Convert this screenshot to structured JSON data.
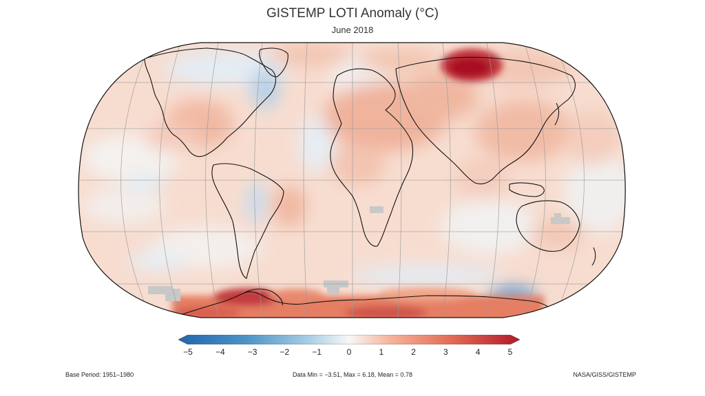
{
  "title": "GISTEMP LOTI Anomaly (°C)",
  "subtitle": "June 2018",
  "colorbar": {
    "ticks": [
      "−5",
      "−4",
      "−3",
      "−2",
      "−1",
      "0",
      "1",
      "2",
      "3",
      "4",
      "5"
    ],
    "min_color": "#2166ac",
    "zero_color": "#f7f7f7",
    "max_color": "#b2182b"
  },
  "footer": {
    "base_period": "Base Period: 1951–1980",
    "stats": "Data Min = −3.51, Max = 6.18, Mean = 0.78",
    "credit": "NASA/GISS/GISTEMP"
  },
  "map": {
    "projection": "Robinson",
    "missing_color": "#c8c8c8"
  }
}
